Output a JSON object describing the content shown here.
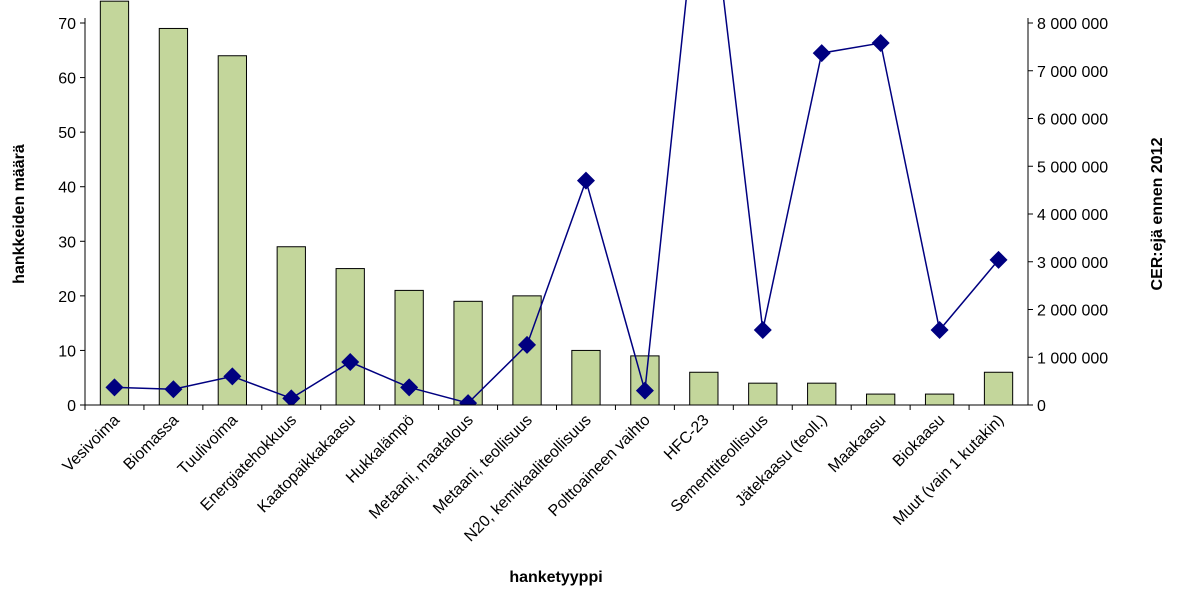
{
  "chart_data": {
    "type": "bar-line",
    "x_label": "hanketyyppi",
    "y_label": "hankkeiden määrä",
    "y2_label": "CER:ejä ennen 2012",
    "categories": [
      "Vesivoima",
      "Biomassa",
      "Tuulivoima",
      "Energiatehokkuus",
      "Kaatopaikkakaasu",
      "Hukkalämpö",
      "Metaani, maatalous",
      "Metaani, teollisuus",
      "N20, kemikaaliteollisuus",
      "Polttoaineen vaihto",
      "HFC-23",
      "Sementtiteollisuus",
      "Jätekaasu (teoll.)",
      "Maakaasu",
      "Biokaasu",
      "Muut (vain 1 kutakin)"
    ],
    "series": [
      {
        "name": "hankkeiden määrä",
        "type": "bar",
        "color": "#c3d69b",
        "values": [
          74,
          69,
          64,
          29,
          25,
          21,
          19,
          20,
          10,
          9,
          6,
          4,
          4,
          2,
          2,
          6
        ]
      },
      {
        "name": "CER:ejä ennen 2012",
        "type": "line",
        "axis": "y2",
        "color": "#000080",
        "values": [
          370000,
          330000,
          600000,
          140000,
          900000,
          370000,
          40000,
          1260000,
          4700000,
          300000,
          12000000,
          1570000,
          7370000,
          7580000,
          1570000,
          3040000
        ]
      }
    ],
    "ylim": [
      0,
      70
    ],
    "yticks": [
      0,
      10,
      20,
      30,
      40,
      50,
      60,
      70
    ],
    "y2lim": [
      0,
      8000000
    ],
    "y2ticks": [
      0,
      {
        "value": 1000000,
        "label": "1 000 000"
      },
      {
        "value": 2000000,
        "label": "2 000 000"
      },
      {
        "value": 3000000,
        "label": "3 000 000"
      },
      {
        "value": 4000000,
        "label": "4 000 000"
      },
      {
        "value": 5000000,
        "label": "5 000 000"
      },
      {
        "value": 6000000,
        "label": "6 000 000"
      },
      {
        "value": 7000000,
        "label": "7 000 000"
      },
      {
        "value": 8000000,
        "label": "8 000 000"
      }
    ]
  }
}
